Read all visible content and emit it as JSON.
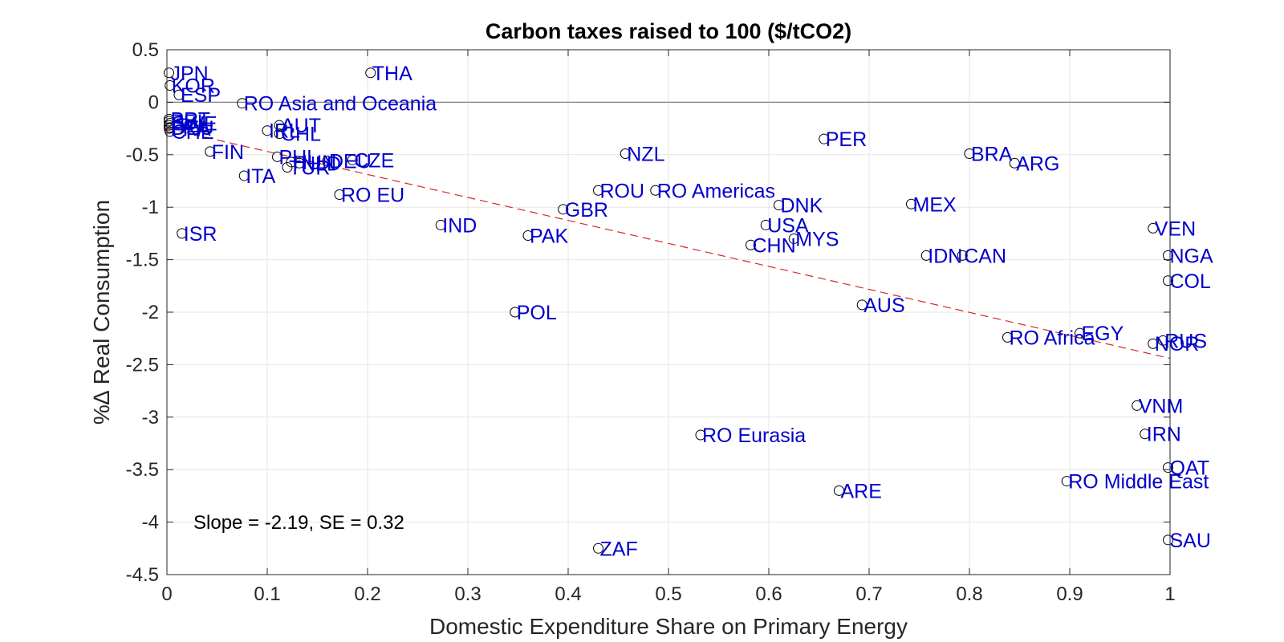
{
  "chart_data": {
    "type": "scatter",
    "title": "Carbon taxes raised to 100 ($/tCO2)",
    "xlabel": "Domestic Expenditure Share on Primary Energy",
    "ylabel": "%∆ Real Consumption",
    "xlim": [
      0,
      1
    ],
    "ylim": [
      -4.5,
      0.5
    ],
    "xticks": [
      0,
      0.1,
      0.2,
      0.3,
      0.4,
      0.5,
      0.6,
      0.7,
      0.8,
      0.9,
      1
    ],
    "xtick_labels": [
      "0",
      "0.1",
      "0.2",
      "0.3",
      "0.4",
      "0.5",
      "0.6",
      "0.7",
      "0.8",
      "0.9",
      "1"
    ],
    "yticks": [
      0.5,
      0,
      -0.5,
      -1,
      -1.5,
      -2,
      -2.5,
      -3,
      -3.5,
      -4,
      -4.5
    ],
    "ytick_labels": [
      "0.5",
      "0",
      "-0.5",
      "-1",
      "-1.5",
      "-2",
      "-2.5",
      "-3",
      "-3.5",
      "-4",
      "-4.5"
    ],
    "grid": true,
    "zero_line": true,
    "annotation": "Slope = -2.19, SE = 0.32",
    "fit_line": {
      "x": [
        0,
        1
      ],
      "y": [
        -0.25,
        -2.44
      ]
    },
    "points": [
      {
        "label": "JPN",
        "x": 0.002,
        "y": 0.28
      },
      {
        "label": "KOR",
        "x": 0.003,
        "y": 0.16
      },
      {
        "label": "ESP",
        "x": 0.012,
        "y": 0.07
      },
      {
        "label": "PRT",
        "x": 0.002,
        "y": -0.16
      },
      {
        "label": "BEL",
        "x": 0.002,
        "y": -0.18
      },
      {
        "label": "SWE",
        "x": 0.003,
        "y": -0.2
      },
      {
        "label": "ITA",
        "x": 0.002,
        "y": -0.22
      },
      {
        "label": "DEU",
        "x": 0.003,
        "y": -0.24
      },
      {
        "label": "FRA",
        "x": 0.002,
        "y": -0.25
      },
      {
        "label": "CHE",
        "x": 0.003,
        "y": -0.28
      },
      {
        "label": "FIN",
        "x": 0.043,
        "y": -0.47
      },
      {
        "label": "ITA",
        "x": 0.077,
        "y": -0.7
      },
      {
        "label": "ISR",
        "x": 0.015,
        "y": -1.25
      },
      {
        "label": "RO Asia and Oceania",
        "x": 0.075,
        "y": -0.01
      },
      {
        "label": "AUT",
        "x": 0.112,
        "y": -0.22
      },
      {
        "label": "IRL",
        "x": 0.1,
        "y": -0.27
      },
      {
        "label": "CHL",
        "x": 0.112,
        "y": -0.3
      },
      {
        "label": "PHL",
        "x": 0.11,
        "y": -0.52
      },
      {
        "label": "HUN",
        "x": 0.124,
        "y": -0.57
      },
      {
        "label": "NLD",
        "x": 0.132,
        "y": -0.58
      },
      {
        "label": "TUR",
        "x": 0.12,
        "y": -0.62
      },
      {
        "label": "DEU",
        "x": 0.16,
        "y": -0.56
      },
      {
        "label": "CZE",
        "x": 0.185,
        "y": -0.55
      },
      {
        "label": "RO EU",
        "x": 0.172,
        "y": -0.88
      },
      {
        "label": "THA",
        "x": 0.203,
        "y": 0.28
      },
      {
        "label": "IND",
        "x": 0.273,
        "y": -1.17
      },
      {
        "label": "POL",
        "x": 0.347,
        "y": -2.0
      },
      {
        "label": "PAK",
        "x": 0.36,
        "y": -1.27
      },
      {
        "label": "GBR",
        "x": 0.395,
        "y": -1.02
      },
      {
        "label": "ROU",
        "x": 0.43,
        "y": -0.84
      },
      {
        "label": "ZAF",
        "x": 0.43,
        "y": -4.25
      },
      {
        "label": "NZL",
        "x": 0.457,
        "y": -0.49
      },
      {
        "label": "RO Americas",
        "x": 0.487,
        "y": -0.84
      },
      {
        "label": "RO Eurasia",
        "x": 0.532,
        "y": -3.17
      },
      {
        "label": "CHN",
        "x": 0.582,
        "y": -1.36
      },
      {
        "label": "USA",
        "x": 0.597,
        "y": -1.17
      },
      {
        "label": "DNK",
        "x": 0.61,
        "y": -0.98
      },
      {
        "label": "MYS",
        "x": 0.625,
        "y": -1.3
      },
      {
        "label": "PER",
        "x": 0.655,
        "y": -0.35
      },
      {
        "label": "ARE",
        "x": 0.67,
        "y": -3.7
      },
      {
        "label": "AUS",
        "x": 0.693,
        "y": -1.93
      },
      {
        "label": "MEX",
        "x": 0.742,
        "y": -0.97
      },
      {
        "label": "IDN",
        "x": 0.757,
        "y": -1.46
      },
      {
        "label": "CAN",
        "x": 0.793,
        "y": -1.46
      },
      {
        "label": "BRA",
        "x": 0.8,
        "y": -0.49
      },
      {
        "label": "ARG",
        "x": 0.845,
        "y": -0.58
      },
      {
        "label": "RO Africa",
        "x": 0.838,
        "y": -2.24
      },
      {
        "label": "EGY",
        "x": 0.91,
        "y": -2.2
      },
      {
        "label": "RO Middle East",
        "x": 0.897,
        "y": -3.61
      },
      {
        "label": "VNM",
        "x": 0.967,
        "y": -2.89
      },
      {
        "label": "IRN",
        "x": 0.975,
        "y": -3.16
      },
      {
        "label": "VEN",
        "x": 0.983,
        "y": -1.2
      },
      {
        "label": "RUS",
        "x": 0.993,
        "y": -2.27
      },
      {
        "label": "NOR",
        "x": 0.983,
        "y": -2.3
      },
      {
        "label": "NGA",
        "x": 0.998,
        "y": -1.46
      },
      {
        "label": "COL",
        "x": 0.998,
        "y": -1.7
      },
      {
        "label": "QAT",
        "x": 0.998,
        "y": -3.48
      },
      {
        "label": "SAU",
        "x": 0.998,
        "y": -4.17
      }
    ],
    "colors": {
      "label": "#0000cc",
      "marker": "#000000",
      "fit_line": "#d62728",
      "grid": "#e6e6e6",
      "zero_line": "#808080"
    }
  }
}
